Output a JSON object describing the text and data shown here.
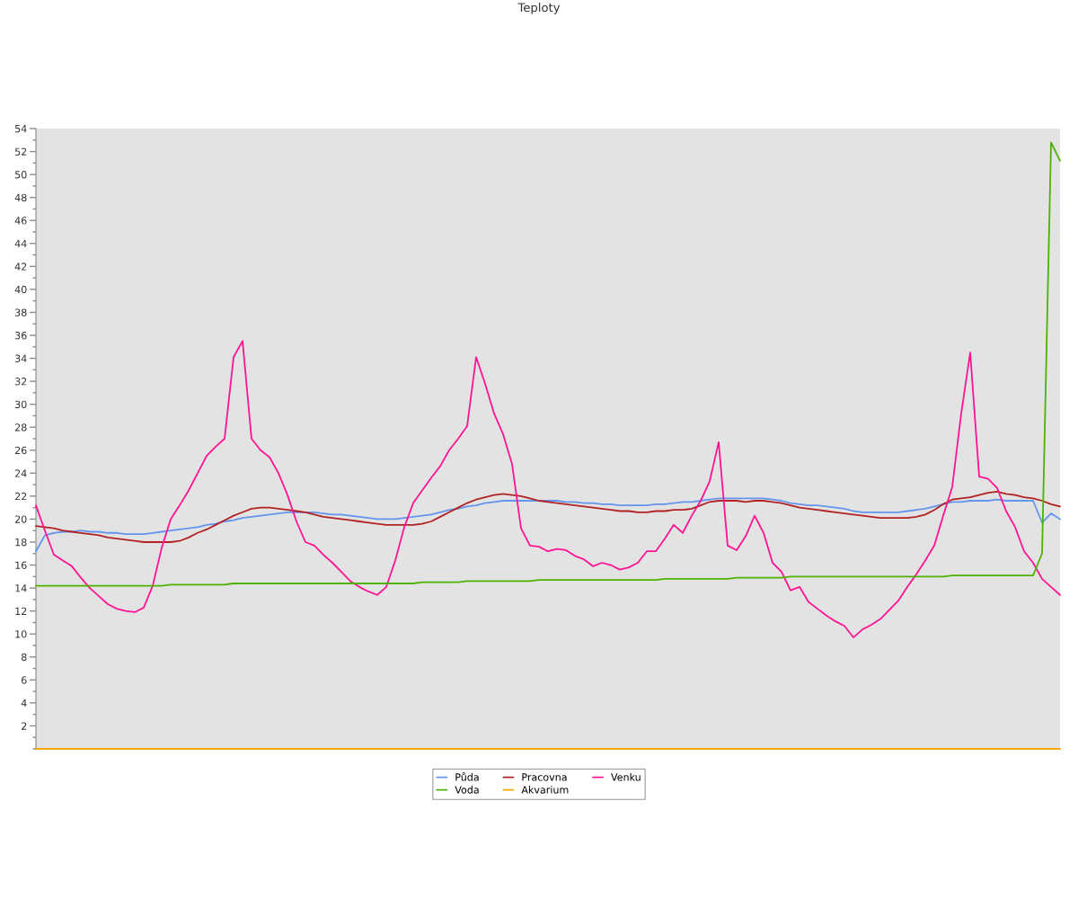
{
  "chart_data": {
    "type": "line",
    "title": "Teploty",
    "legend": "bottom",
    "categories": [
      null,
      null,
      null,
      null,
      null,
      null,
      null,
      null,
      null,
      null,
      null,
      null,
      null,
      null,
      null,
      null,
      null,
      null,
      null,
      null,
      null,
      null,
      null,
      null,
      null,
      null,
      null,
      null,
      null,
      null,
      null,
      null,
      null,
      null,
      null,
      null,
      null,
      null,
      null,
      null,
      null,
      null,
      null,
      null,
      null,
      null,
      null,
      null,
      null,
      null,
      null,
      null,
      null,
      null,
      null,
      null,
      null,
      null,
      null,
      null,
      null,
      null,
      null,
      null,
      null,
      null,
      null,
      null,
      null,
      null,
      null,
      null,
      null,
      null,
      null,
      null,
      null,
      null,
      null,
      null,
      null,
      null,
      null,
      null,
      null,
      null,
      null,
      null,
      null,
      null,
      null,
      null,
      null,
      null,
      null,
      null,
      null,
      null,
      null,
      null,
      null,
      null,
      null,
      null,
      null,
      null,
      null,
      null,
      null,
      null,
      null,
      null,
      null,
      null,
      null
    ],
    "ylim": [
      0,
      54
    ],
    "yticks": [
      {
        "value": 0,
        "label": null
      },
      {
        "value": 1,
        "label": null
      },
      2,
      {
        "value": 3,
        "label": null
      },
      4,
      {
        "value": 5,
        "label": null
      },
      6,
      {
        "value": 7,
        "label": null
      },
      8,
      {
        "value": 9,
        "label": null
      },
      10,
      {
        "value": 11,
        "label": null
      },
      12,
      {
        "value": 13,
        "label": null
      },
      14,
      {
        "value": 15,
        "label": null
      },
      16,
      {
        "value": 17,
        "label": null
      },
      18,
      {
        "value": 19,
        "label": null
      },
      20,
      {
        "value": 21,
        "label": null
      },
      22,
      {
        "value": 23,
        "label": null
      },
      24,
      {
        "value": 25,
        "label": null
      },
      26,
      {
        "value": 27,
        "label": null
      },
      28,
      {
        "value": 29,
        "label": null
      },
      30,
      {
        "value": 31,
        "label": null
      },
      32,
      {
        "value": 33,
        "label": null
      },
      34,
      {
        "value": 35,
        "label": null
      },
      36,
      {
        "value": 37,
        "label": null
      },
      38,
      {
        "value": 39,
        "label": null
      },
      40,
      {
        "value": 41,
        "label": null
      },
      42,
      {
        "value": 43,
        "label": null
      },
      44,
      {
        "value": 45,
        "label": null
      },
      46,
      {
        "value": 47,
        "label": null
      },
      48,
      {
        "value": 49,
        "label": null
      },
      50,
      {
        "value": 51,
        "label": null
      },
      52,
      {
        "value": 53,
        "label": null
      },
      54
    ],
    "series": [
      {
        "name": "Půda",
        "color": "#6495ed",
        "values": [
          17.2,
          18.6,
          18.8,
          18.9,
          18.9,
          19.0,
          18.9,
          18.9,
          18.8,
          18.8,
          18.7,
          18.7,
          18.7,
          18.8,
          18.9,
          19.0,
          19.1,
          19.2,
          19.3,
          19.5,
          19.6,
          19.8,
          19.9,
          20.1,
          20.2,
          20.3,
          20.4,
          20.5,
          20.6,
          20.6,
          20.6,
          20.6,
          20.5,
          20.4,
          20.4,
          20.3,
          20.2,
          20.1,
          20.0,
          20.0,
          20.0,
          20.1,
          20.2,
          20.3,
          20.4,
          20.6,
          20.8,
          20.9,
          21.1,
          21.2,
          21.4,
          21.5,
          21.6,
          21.6,
          21.6,
          21.6,
          21.6,
          21.6,
          21.6,
          21.5,
          21.5,
          21.4,
          21.4,
          21.3,
          21.3,
          21.2,
          21.2,
          21.2,
          21.2,
          21.3,
          21.3,
          21.4,
          21.5,
          21.5,
          21.6,
          21.7,
          21.8,
          21.8,
          21.8,
          21.8,
          21.8,
          21.8,
          21.7,
          21.6,
          21.4,
          21.3,
          21.2,
          21.2,
          21.1,
          21.0,
          20.9,
          20.7,
          20.6,
          20.6,
          20.6,
          20.6,
          20.6,
          20.7,
          20.8,
          20.9,
          21.1,
          21.3,
          21.5,
          21.5,
          21.6,
          21.6,
          21.6,
          21.7,
          21.6,
          21.6,
          21.6,
          21.6,
          19.7,
          20.5,
          20.0
        ]
      },
      {
        "name": "Pracovna",
        "color": "#b22222",
        "values": [
          19.4,
          19.3,
          19.2,
          19.0,
          18.9,
          18.8,
          18.7,
          18.6,
          18.4,
          18.3,
          18.2,
          18.1,
          18.0,
          18.0,
          18.0,
          18.0,
          18.1,
          18.4,
          18.8,
          19.1,
          19.5,
          19.9,
          20.3,
          20.6,
          20.9,
          21.0,
          21.0,
          20.9,
          20.8,
          20.7,
          20.6,
          20.4,
          20.2,
          20.1,
          20.0,
          19.9,
          19.8,
          19.7,
          19.6,
          19.5,
          19.5,
          19.5,
          19.5,
          19.6,
          19.8,
          20.2,
          20.6,
          21.0,
          21.4,
          21.7,
          21.9,
          22.1,
          22.2,
          22.1,
          22.0,
          21.8,
          21.6,
          21.5,
          21.4,
          21.3,
          21.2,
          21.1,
          21.0,
          20.9,
          20.8,
          20.7,
          20.7,
          20.6,
          20.6,
          20.7,
          20.7,
          20.8,
          20.8,
          20.9,
          21.2,
          21.5,
          21.6,
          21.6,
          21.6,
          21.5,
          21.6,
          21.6,
          21.5,
          21.4,
          21.2,
          21.0,
          20.9,
          20.8,
          20.7,
          20.6,
          20.5,
          20.4,
          20.3,
          20.2,
          20.1,
          20.1,
          20.1,
          20.1,
          20.2,
          20.4,
          20.8,
          21.3,
          21.7,
          21.8,
          21.9,
          22.1,
          22.3,
          22.4,
          22.2,
          22.1,
          21.9,
          21.8,
          21.6,
          21.3,
          21.1
        ]
      },
      {
        "name": "Venku",
        "color": "#ff1493",
        "values": [
          21.2,
          19.0,
          16.9,
          16.4,
          15.9,
          14.9,
          14.0,
          13.3,
          12.6,
          12.2,
          12.0,
          11.9,
          12.3,
          14.2,
          17.5,
          20.0,
          21.2,
          22.5,
          24.0,
          25.5,
          26.3,
          27.0,
          34.1,
          35.5,
          27.0,
          26.0,
          25.4,
          24.0,
          22.1,
          19.8,
          18.0,
          17.7,
          16.9,
          16.2,
          15.4,
          14.6,
          14.1,
          13.7,
          13.4,
          14.1,
          16.4,
          19.3,
          21.4,
          22.5,
          23.6,
          24.6,
          26.0,
          27.0,
          28.1,
          34.1,
          31.8,
          29.2,
          27.4,
          24.8,
          19.2,
          17.7,
          17.6,
          17.2,
          17.4,
          17.3,
          16.8,
          16.5,
          15.9,
          16.2,
          16.0,
          15.6,
          15.8,
          16.2,
          17.2,
          17.2,
          18.3,
          19.5,
          18.8,
          20.3,
          21.6,
          23.3,
          26.7,
          17.7,
          17.3,
          18.5,
          20.3,
          18.8,
          16.2,
          15.4,
          13.8,
          14.1,
          12.8,
          12.2,
          11.6,
          11.1,
          10.7,
          9.7,
          10.4,
          10.8,
          11.3,
          12.1,
          12.9,
          14.1,
          15.2,
          16.4,
          17.7,
          20.3,
          22.8,
          29.2,
          34.5,
          23.7,
          23.5,
          22.7,
          20.7,
          19.3,
          17.2,
          16.2,
          14.8,
          14.1,
          13.4
        ]
      },
      {
        "name": "Voda",
        "color": "#4db300",
        "values": [
          14.2,
          14.2,
          14.2,
          14.2,
          14.2,
          14.2,
          14.2,
          14.2,
          14.2,
          14.2,
          14.2,
          14.2,
          14.2,
          14.2,
          14.2,
          14.3,
          14.3,
          14.3,
          14.3,
          14.3,
          14.3,
          14.3,
          14.4,
          14.4,
          14.4,
          14.4,
          14.4,
          14.4,
          14.4,
          14.4,
          14.4,
          14.4,
          14.4,
          14.4,
          14.4,
          14.4,
          14.4,
          14.4,
          14.4,
          14.4,
          14.4,
          14.4,
          14.4,
          14.5,
          14.5,
          14.5,
          14.5,
          14.5,
          14.6,
          14.6,
          14.6,
          14.6,
          14.6,
          14.6,
          14.6,
          14.6,
          14.7,
          14.7,
          14.7,
          14.7,
          14.7,
          14.7,
          14.7,
          14.7,
          14.7,
          14.7,
          14.7,
          14.7,
          14.7,
          14.7,
          14.8,
          14.8,
          14.8,
          14.8,
          14.8,
          14.8,
          14.8,
          14.8,
          14.9,
          14.9,
          14.9,
          14.9,
          14.9,
          14.9,
          15.0,
          15.0,
          15.0,
          15.0,
          15.0,
          15.0,
          15.0,
          15.0,
          15.0,
          15.0,
          15.0,
          15.0,
          15.0,
          15.0,
          15.0,
          15.0,
          15.0,
          15.0,
          15.1,
          15.1,
          15.1,
          15.1,
          15.1,
          15.1,
          15.1,
          15.1,
          15.1,
          15.1,
          17.0,
          52.8,
          51.2
        ]
      },
      {
        "name": "Akvarium",
        "color": "#ffa500",
        "values": [
          0,
          0,
          0,
          0,
          0,
          0,
          0,
          0,
          0,
          0,
          0,
          0,
          0,
          0,
          0,
          0,
          0,
          0,
          0,
          0,
          0,
          0,
          0,
          0,
          0,
          0,
          0,
          0,
          0,
          0,
          0,
          0,
          0,
          0,
          0,
          0,
          0,
          0,
          0,
          0,
          0,
          0,
          0,
          0,
          0,
          0,
          0,
          0,
          0,
          0,
          0,
          0,
          0,
          0,
          0,
          0,
          0,
          0,
          0,
          0,
          0,
          0,
          0,
          0,
          0,
          0,
          0,
          0,
          0,
          0,
          0,
          0,
          0,
          0,
          0,
          0,
          0,
          0,
          0,
          0,
          0,
          0,
          0,
          0,
          0,
          0,
          0,
          0,
          0,
          0,
          0,
          0,
          0,
          0,
          0,
          0,
          0,
          0,
          0,
          0,
          0,
          0,
          0,
          0,
          0,
          0,
          0,
          0,
          0,
          0,
          0,
          0,
          0,
          0,
          0
        ]
      }
    ]
  }
}
